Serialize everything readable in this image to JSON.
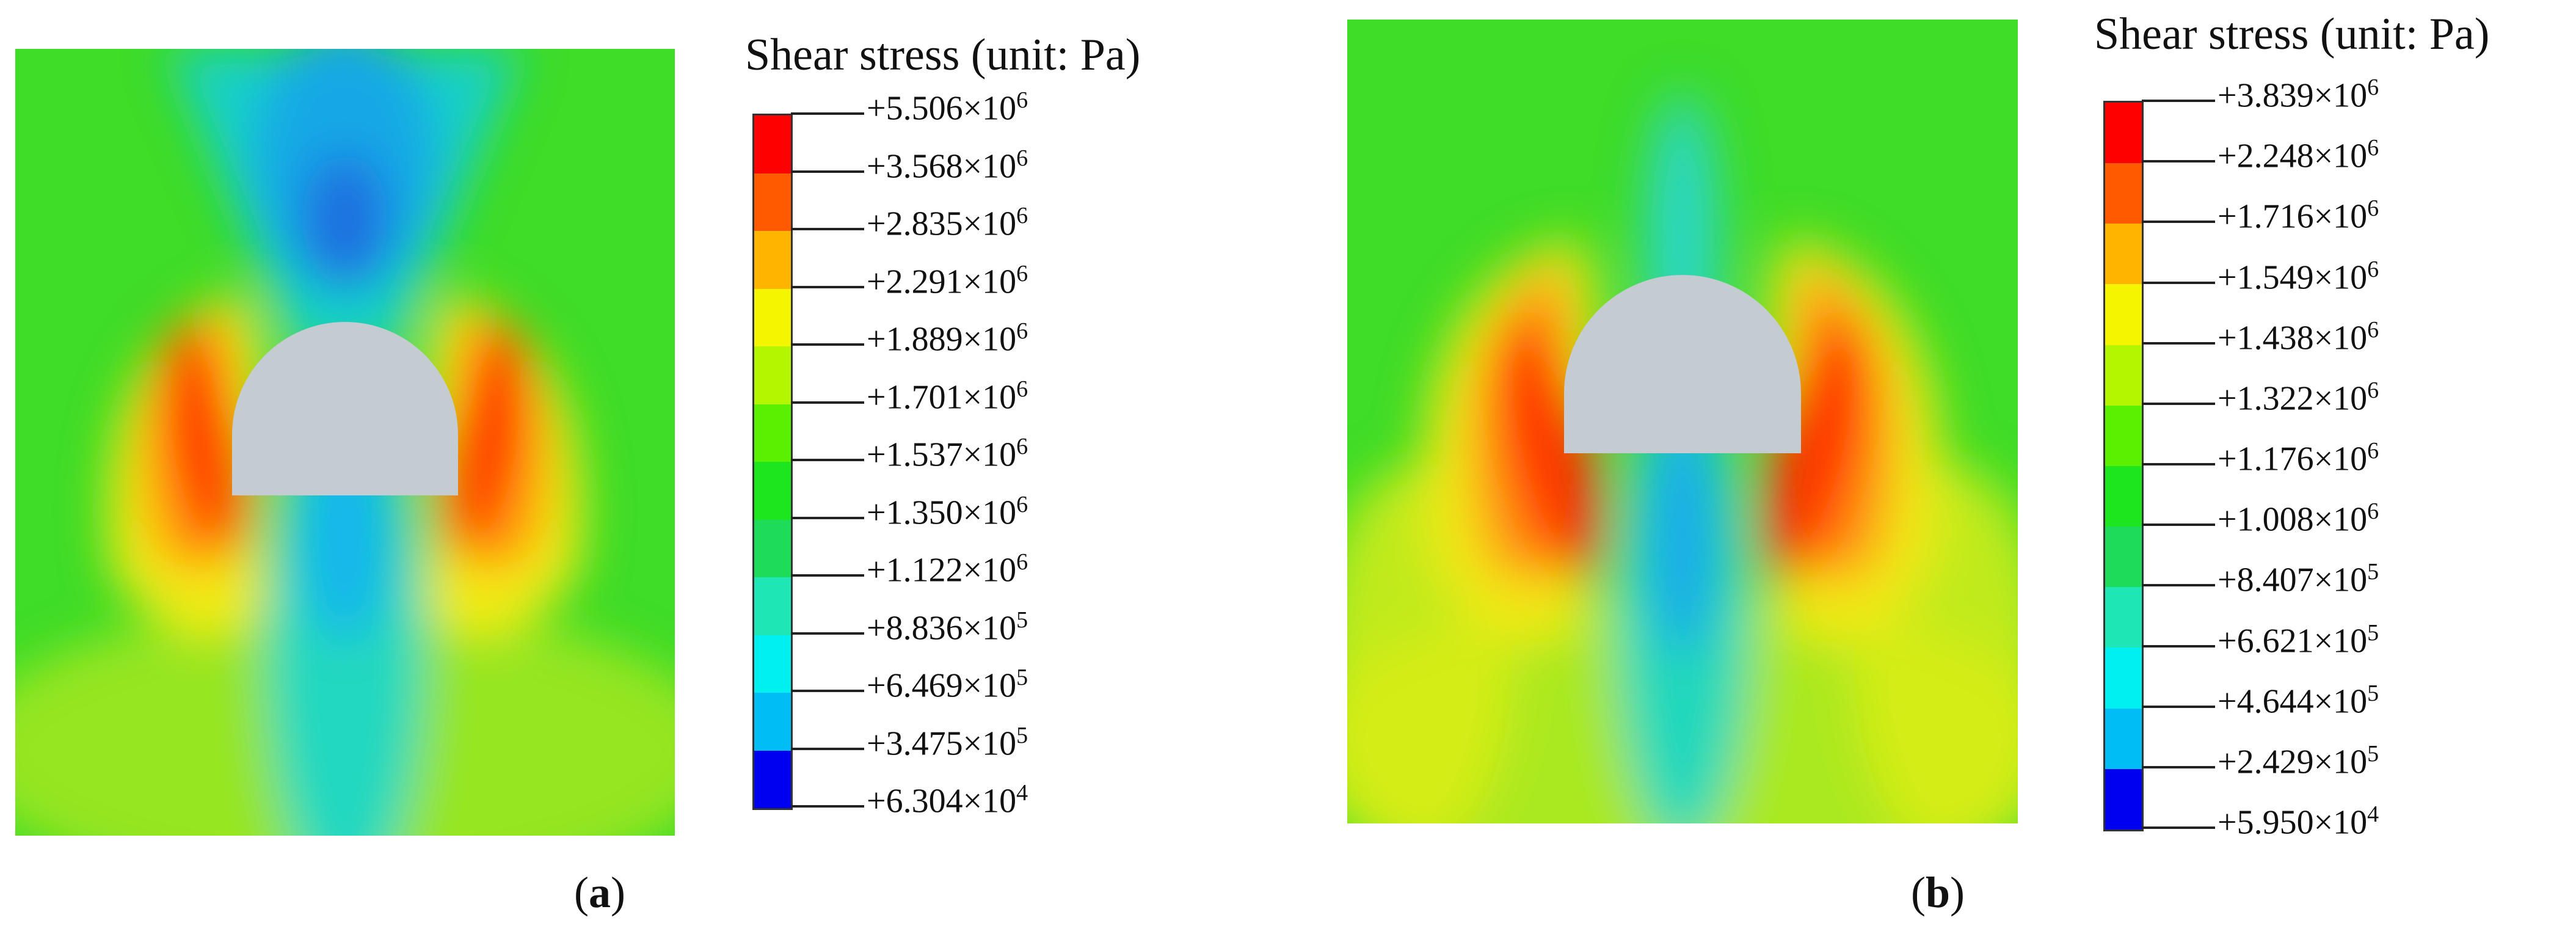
{
  "panels": [
    {
      "id": "a",
      "legend": {
        "title": "Shear stress (unit: Pa)",
        "ticks": [
          {
            "mantissa": "+5.506×10",
            "exp": "6"
          },
          {
            "mantissa": "+3.568×10",
            "exp": "6"
          },
          {
            "mantissa": "+2.835×10",
            "exp": "6"
          },
          {
            "mantissa": "+2.291×10",
            "exp": "6"
          },
          {
            "mantissa": "+1.889×10",
            "exp": "6"
          },
          {
            "mantissa": "+1.701×10",
            "exp": "6"
          },
          {
            "mantissa": "+1.537×10",
            "exp": "6"
          },
          {
            "mantissa": "+1.350×10",
            "exp": "6"
          },
          {
            "mantissa": "+1.122×10",
            "exp": "6"
          },
          {
            "mantissa": "+8.836×10",
            "exp": "5"
          },
          {
            "mantissa": "+6.469×10",
            "exp": "5"
          },
          {
            "mantissa": "+3.475×10",
            "exp": "5"
          },
          {
            "mantissa": "+6.304×10",
            "exp": "4"
          }
        ]
      },
      "caption_open": "(",
      "caption_letter": "a",
      "caption_close": ")"
    },
    {
      "id": "b",
      "legend": {
        "title": "Shear stress (unit: Pa)",
        "ticks": [
          {
            "mantissa": "+3.839×10",
            "exp": "6"
          },
          {
            "mantissa": "+2.248×10",
            "exp": "6"
          },
          {
            "mantissa": "+1.716×10",
            "exp": "6"
          },
          {
            "mantissa": "+1.549×10",
            "exp": "6"
          },
          {
            "mantissa": "+1.438×10",
            "exp": "6"
          },
          {
            "mantissa": "+1.322×10",
            "exp": "6"
          },
          {
            "mantissa": "+1.176×10",
            "exp": "6"
          },
          {
            "mantissa": "+1.008×10",
            "exp": "6"
          },
          {
            "mantissa": "+8.407×10",
            "exp": "5"
          },
          {
            "mantissa": "+6.621×10",
            "exp": "5"
          },
          {
            "mantissa": "+4.644×10",
            "exp": "5"
          },
          {
            "mantissa": "+2.429×10",
            "exp": "5"
          },
          {
            "mantissa": "+5.950×10",
            "exp": "4"
          }
        ]
      },
      "caption_open": "(",
      "caption_letter": "b",
      "caption_close": ")"
    }
  ],
  "colormap": [
    "#ff0000",
    "#ff5a00",
    "#ffb400",
    "#f5f500",
    "#b4f500",
    "#5af000",
    "#1ee61e",
    "#1edc5a",
    "#1ee6b4",
    "#00f0f0",
    "#00bef5",
    "#0064f0",
    "#0000f0"
  ],
  "tunnel_color": "#c4cbd1"
}
